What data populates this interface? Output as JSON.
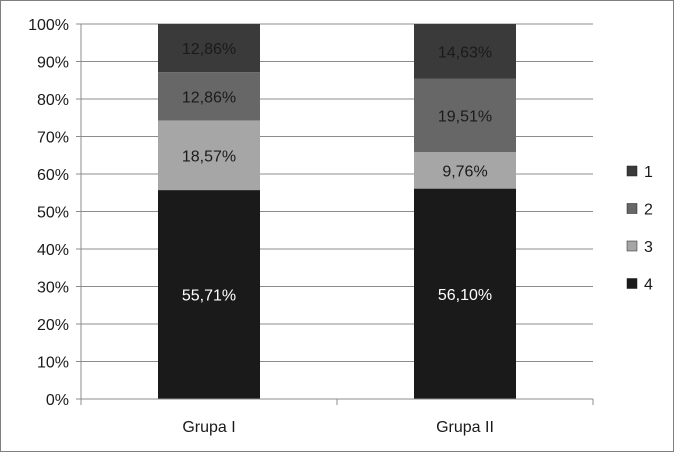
{
  "chart_data": {
    "type": "bar",
    "stacked": true,
    "percent": true,
    "categories": [
      "Grupa I",
      "Grupa II"
    ],
    "series": [
      {
        "name": "4",
        "values": [
          55.71,
          56.1
        ],
        "labels": [
          "55,71%",
          "56,10%"
        ],
        "color": "#1a1a1a",
        "label_color": "#ffffff"
      },
      {
        "name": "3",
        "values": [
          18.57,
          9.76
        ],
        "labels": [
          "18,57%",
          "9,76%"
        ],
        "color": "#a6a6a6",
        "label_color": "#1a1a1a"
      },
      {
        "name": "2",
        "values": [
          12.86,
          19.51
        ],
        "labels": [
          "12,86%",
          "19,51%"
        ],
        "color": "#676767",
        "label_color": "#1a1a1a"
      },
      {
        "name": "1",
        "values": [
          12.86,
          14.63
        ],
        "labels": [
          "12,86%",
          "14,63%"
        ],
        "color": "#3a3a3a",
        "label_color": "#1a1a1a"
      }
    ],
    "ylim": [
      0,
      100
    ],
    "yticks": [
      "0%",
      "10%",
      "20%",
      "30%",
      "40%",
      "50%",
      "60%",
      "70%",
      "80%",
      "90%",
      "100%"
    ],
    "grid": true,
    "legend": {
      "position": "right",
      "order": [
        "1",
        "2",
        "3",
        "4"
      ]
    }
  }
}
